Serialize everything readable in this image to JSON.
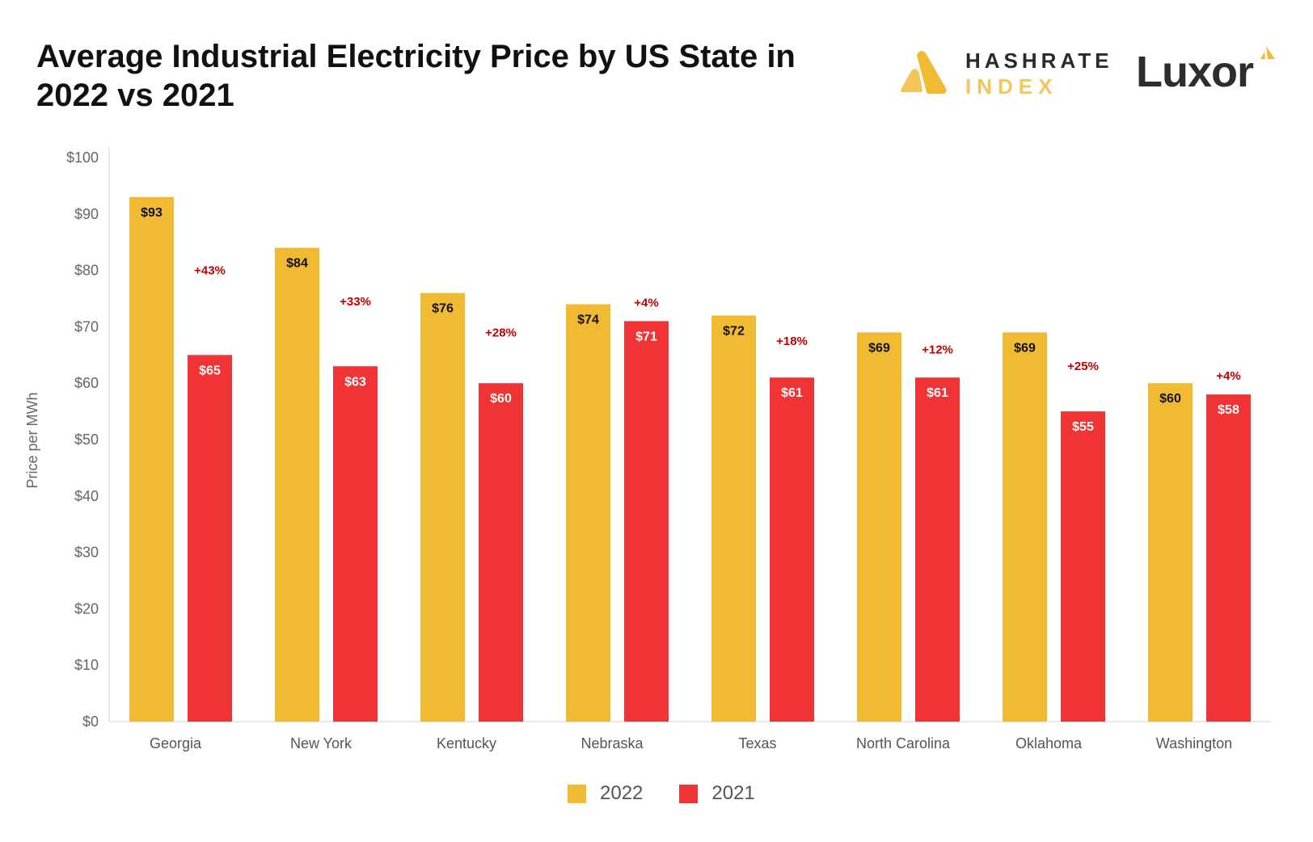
{
  "title": "Average Industrial Electricity Price by US State in 2022 vs 2021",
  "logos": {
    "hashrate_line1": "HASHRATE",
    "hashrate_line2": "INDEX",
    "luxor": "Luxor"
  },
  "colors": {
    "2022": "#f0bb32",
    "2021": "#f03335",
    "pct": "#c00000"
  },
  "chart_data": {
    "type": "bar",
    "title": "Average Industrial Electricity Price by US State in 2022 vs 2021",
    "xlabel": "",
    "ylabel": "Price per MWh",
    "ylim": [
      0,
      100
    ],
    "yticks": [
      "$0",
      "$10",
      "$20",
      "$30",
      "$40",
      "$50",
      "$60",
      "$70",
      "$80",
      "$90",
      "$100"
    ],
    "grid": false,
    "legend_position": "bottom",
    "categories": [
      "Georgia",
      "New York",
      "Kentucky",
      "Nebraska",
      "Texas",
      "North Carolina",
      "Oklahoma",
      "Washington"
    ],
    "series": [
      {
        "name": "2022",
        "values": [
          93,
          84,
          76,
          74,
          72,
          69,
          69,
          60
        ],
        "labels": [
          "$93",
          "$84",
          "$76",
          "$74",
          "$72",
          "$69",
          "$69",
          "$60"
        ]
      },
      {
        "name": "2021",
        "values": [
          65,
          63,
          60,
          71,
          61,
          61,
          55,
          58
        ],
        "labels": [
          "$65",
          "$63",
          "$60",
          "$71",
          "$61",
          "$61",
          "$55",
          "$58"
        ]
      }
    ],
    "annotations": [
      "+43%",
      "+33%",
      "+28%",
      "+4%",
      "+18%",
      "+12%",
      "+25%",
      "+4%"
    ]
  }
}
